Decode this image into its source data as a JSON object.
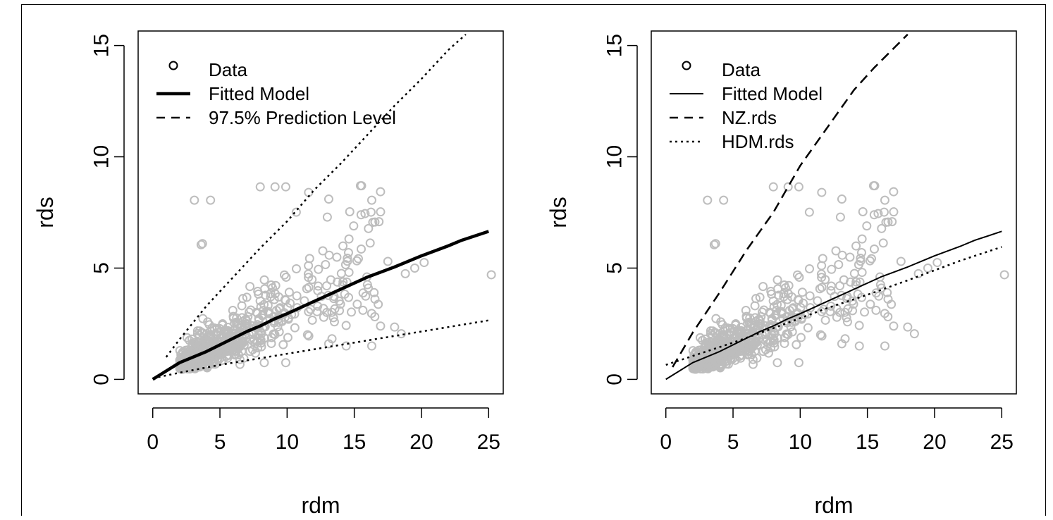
{
  "chart_data": [
    {
      "type": "scatter",
      "xlabel": "rdm",
      "ylabel": "rds",
      "xlim": [
        0,
        25
      ],
      "ylim": [
        0,
        15
      ],
      "xticks": [
        0,
        5,
        10,
        15,
        20,
        25
      ],
      "yticks": [
        0,
        5,
        10,
        15
      ],
      "grid": false,
      "legend_position": "top-left",
      "legend": [
        {
          "label": "Data",
          "symbol": "circle"
        },
        {
          "label": "Fitted Model",
          "symbol": "thick-solid"
        },
        {
          "label": "97.5% Prediction Level",
          "symbol": "dashed"
        }
      ],
      "series": [
        {
          "name": "Fitted Model",
          "style": "thick-solid",
          "x": [
            0,
            2,
            4,
            6,
            7,
            8,
            9,
            10,
            12,
            14,
            16,
            18,
            20,
            22,
            23,
            25
          ],
          "y": [
            0,
            0.75,
            1.25,
            1.85,
            2.15,
            2.4,
            2.7,
            2.95,
            3.5,
            4.05,
            4.6,
            5.05,
            5.55,
            6.0,
            6.25,
            6.65
          ]
        },
        {
          "name": "Upper 97.5% Prediction Level",
          "style": "dotted",
          "x": [
            1,
            2,
            4,
            6,
            8,
            10,
            12,
            14,
            16,
            18,
            20,
            22,
            23.3
          ],
          "y": [
            1.0,
            1.8,
            3.3,
            4.6,
            5.9,
            7.1,
            8.5,
            9.7,
            11.0,
            12.3,
            13.5,
            14.8,
            15.5
          ]
        },
        {
          "name": "Lower 97.5% Prediction Level",
          "style": "dotted",
          "x": [
            0,
            2,
            5,
            8,
            10,
            13,
            15,
            18,
            20,
            22,
            25
          ],
          "y": [
            0.05,
            0.3,
            0.65,
            0.95,
            1.15,
            1.45,
            1.65,
            1.95,
            2.15,
            2.35,
            2.65
          ]
        }
      ]
    },
    {
      "type": "scatter",
      "xlabel": "rdm",
      "ylabel": "rds",
      "xlim": [
        0,
        25
      ],
      "ylim": [
        0,
        15
      ],
      "xticks": [
        0,
        5,
        10,
        15,
        20,
        25
      ],
      "yticks": [
        0,
        5,
        10,
        15
      ],
      "grid": false,
      "legend_position": "top-left",
      "legend": [
        {
          "label": "Data",
          "symbol": "circle"
        },
        {
          "label": "Fitted Model",
          "symbol": "solid"
        },
        {
          "label": "NZ.rds",
          "symbol": "dashed"
        },
        {
          "label": "HDM.rds",
          "symbol": "dotted"
        }
      ],
      "series": [
        {
          "name": "Fitted Model",
          "style": "solid",
          "x": [
            0,
            2,
            4,
            6,
            7,
            8,
            9,
            10,
            12,
            14,
            16,
            18,
            20,
            22,
            23,
            25
          ],
          "y": [
            0,
            0.75,
            1.25,
            1.85,
            2.15,
            2.4,
            2.7,
            2.95,
            3.5,
            4.05,
            4.6,
            5.05,
            5.55,
            6.0,
            6.25,
            6.65
          ]
        },
        {
          "name": "NZ.rds",
          "style": "dashed",
          "x": [
            0.5,
            2,
            4,
            6,
            8,
            10,
            12,
            14,
            15.5,
            17,
            18
          ],
          "y": [
            0.55,
            2.1,
            3.9,
            5.8,
            7.5,
            9.6,
            11.3,
            13.0,
            14.0,
            14.9,
            15.5
          ]
        },
        {
          "name": "HDM.rds",
          "style": "dotted",
          "x": [
            0,
            2,
            5,
            8,
            10,
            12,
            15,
            18,
            20,
            22,
            25
          ],
          "y": [
            0.65,
            1.05,
            1.65,
            2.3,
            2.75,
            3.2,
            3.8,
            4.45,
            4.9,
            5.35,
            5.95
          ]
        }
      ]
    }
  ]
}
